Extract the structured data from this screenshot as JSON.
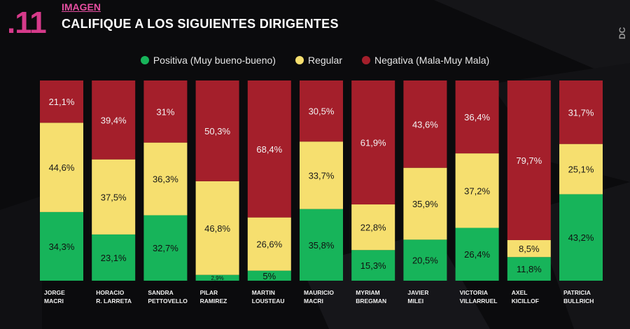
{
  "header": {
    "number": ".11",
    "kicker": "IMAGEN",
    "title": "CALIFIQUE A LOS SIGUIENTES DIRIGENTES",
    "brand": "DC"
  },
  "colors": {
    "positiva": "#17b45a",
    "regular": "#f6df6f",
    "negativa": "#a41f2b",
    "accent": "#d63a8a"
  },
  "chart_data": {
    "type": "bar",
    "stacked": true,
    "legend_position": "top-center",
    "ylim": [
      0,
      100
    ],
    "categories": [
      [
        "JORGE",
        "MACRI"
      ],
      [
        "HORACIO",
        "R. LARRETA"
      ],
      [
        "SANDRA",
        "PETTOVELLO"
      ],
      [
        "PILAR",
        "RAMIREZ"
      ],
      [
        "MARTIN",
        "LOUSTEAU"
      ],
      [
        "MAURICIO",
        "MACRI"
      ],
      [
        "MYRIAM",
        "BREGMAN"
      ],
      [
        "JAVIER",
        "MILEI"
      ],
      [
        "VICTORIA",
        "VILLARRUEL"
      ],
      [
        "AXEL",
        "KICILLOF"
      ],
      [
        "PATRICIA",
        "BULLRICH"
      ]
    ],
    "series": [
      {
        "key": "positiva",
        "name": "Positiva (Muy bueno-bueno)",
        "values": [
          34.3,
          23.1,
          32.7,
          2.9,
          5,
          35.8,
          15.3,
          20.5,
          26.4,
          11.8,
          43.2
        ],
        "labels": [
          "34,3%",
          "23,1%",
          "32,7%",
          "2,9%",
          "5%",
          "35,8%",
          "15,3%",
          "20,5%",
          "26,4%",
          "11,8%",
          "43,2%"
        ]
      },
      {
        "key": "regular",
        "name": "Regular",
        "values": [
          44.6,
          37.5,
          36.3,
          46.8,
          26.6,
          33.7,
          22.8,
          35.9,
          37.2,
          8.5,
          25.1
        ],
        "labels": [
          "44,6%",
          "37,5%",
          "36,3%",
          "46,8%",
          "26,6%",
          "33,7%",
          "22,8%",
          "35,9%",
          "37,2%",
          "8,5%",
          "25,1%"
        ]
      },
      {
        "key": "negativa",
        "name": "Negativa (Mala-Muy Mala)",
        "values": [
          21.1,
          39.4,
          31,
          50.3,
          68.4,
          30.5,
          61.9,
          43.6,
          36.4,
          79.7,
          31.7
        ],
        "labels": [
          "21,1%",
          "39,4%",
          "31%",
          "50,3%",
          "68,4%",
          "30,5%",
          "61,9%",
          "43,6%",
          "36,4%",
          "79,7%",
          "31,7%"
        ]
      }
    ]
  }
}
